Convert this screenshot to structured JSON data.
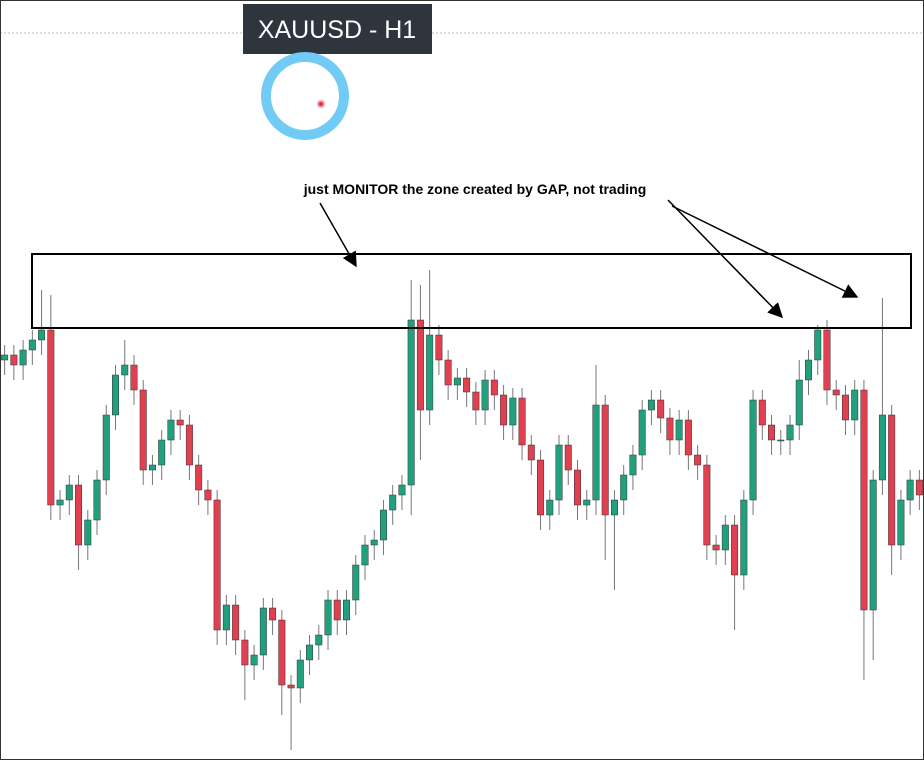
{
  "chart_data": {
    "type": "candlestick",
    "title": "XAUUSD - H1",
    "annotation": "just MONITOR the zone created by GAP,  not trading",
    "up_color": "#22a07e",
    "down_color": "#e0404f",
    "ylim": [
      0,
      760
    ],
    "open": [
      400,
      405,
      395,
      410,
      420,
      430,
      255,
      260,
      275,
      215,
      240,
      280,
      345,
      385,
      395,
      370,
      290,
      295,
      320,
      340,
      335,
      295,
      270,
      260,
      130,
      155,
      120,
      95,
      105,
      152,
      140,
      75,
      72,
      100,
      115,
      125,
      160,
      140,
      160,
      195,
      215,
      220,
      250,
      265,
      275,
      440,
      350,
      425,
      400,
      375,
      382,
      368,
      350,
      380,
      365,
      335,
      362,
      315,
      300,
      245,
      260,
      315,
      290,
      255,
      260,
      355,
      245,
      260,
      285,
      305,
      350,
      360,
      342,
      320,
      340,
      305,
      295,
      215,
      210,
      235,
      185,
      260,
      360,
      335,
      320,
      320,
      335,
      380,
      400,
      430,
      370,
      365,
      340,
      370,
      150,
      280,
      345,
      215,
      260,
      280
    ],
    "high": [
      415,
      415,
      420,
      430,
      470,
      465,
      270,
      285,
      285,
      250,
      290,
      355,
      395,
      420,
      405,
      380,
      305,
      330,
      350,
      350,
      345,
      305,
      280,
      270,
      165,
      165,
      130,
      115,
      162,
      162,
      150,
      85,
      110,
      125,
      135,
      170,
      170,
      170,
      205,
      225,
      230,
      260,
      275,
      285,
      480,
      475,
      490,
      435,
      410,
      392,
      392,
      378,
      390,
      390,
      375,
      372,
      372,
      325,
      310,
      270,
      325,
      325,
      300,
      270,
      395,
      365,
      270,
      295,
      315,
      360,
      370,
      370,
      352,
      350,
      350,
      315,
      305,
      225,
      245,
      245,
      270,
      370,
      370,
      345,
      330,
      345,
      400,
      410,
      435,
      440,
      380,
      375,
      380,
      380,
      290,
      462,
      355,
      270,
      290,
      290
    ],
    "low": [
      385,
      380,
      380,
      395,
      405,
      240,
      240,
      245,
      190,
      200,
      225,
      265,
      330,
      370,
      355,
      275,
      275,
      280,
      305,
      320,
      280,
      255,
      245,
      115,
      115,
      105,
      60,
      80,
      90,
      125,
      45,
      10,
      57,
      85,
      100,
      110,
      125,
      125,
      145,
      180,
      200,
      205,
      235,
      250,
      245,
      300,
      335,
      385,
      360,
      360,
      353,
      335,
      335,
      350,
      320,
      320,
      300,
      285,
      230,
      230,
      245,
      275,
      240,
      240,
      245,
      200,
      170,
      245,
      270,
      290,
      335,
      327,
      305,
      305,
      290,
      280,
      200,
      195,
      195,
      130,
      170,
      245,
      320,
      305,
      305,
      305,
      320,
      365,
      385,
      355,
      350,
      325,
      325,
      80,
      100,
      265,
      185,
      200,
      245,
      250
    ],
    "close": [
      405,
      395,
      410,
      420,
      430,
      255,
      260,
      275,
      215,
      240,
      280,
      345,
      385,
      395,
      370,
      290,
      295,
      320,
      340,
      335,
      295,
      270,
      260,
      130,
      155,
      120,
      95,
      105,
      152,
      140,
      75,
      72,
      100,
      115,
      125,
      160,
      140,
      160,
      195,
      215,
      220,
      250,
      265,
      275,
      440,
      350,
      425,
      400,
      375,
      382,
      368,
      350,
      380,
      365,
      335,
      362,
      315,
      300,
      245,
      260,
      315,
      290,
      255,
      260,
      355,
      245,
      260,
      285,
      305,
      350,
      360,
      342,
      320,
      340,
      305,
      295,
      215,
      210,
      235,
      185,
      260,
      360,
      335,
      320,
      320,
      335,
      380,
      400,
      430,
      370,
      365,
      340,
      370,
      150,
      280,
      345,
      215,
      260,
      280,
      265
    ]
  }
}
